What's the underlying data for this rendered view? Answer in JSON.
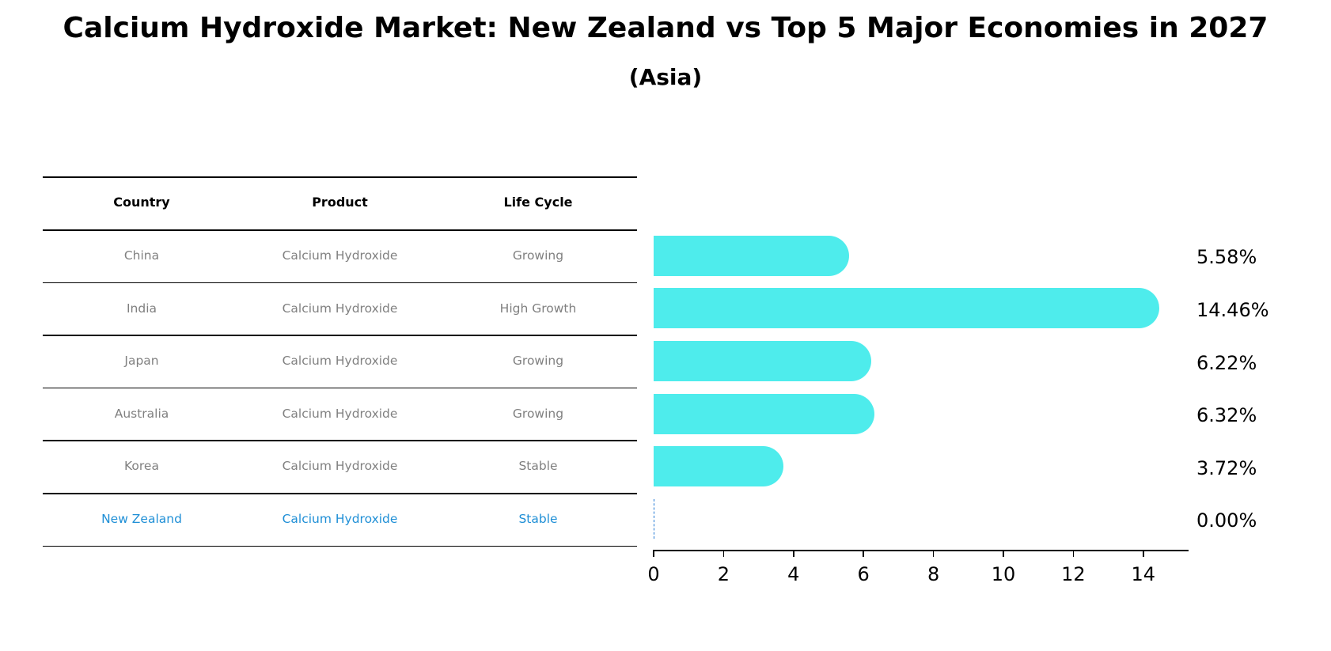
{
  "header": {
    "title": "Calcium Hydroxide Market: New Zealand vs Top 5 Major Economies in 2027",
    "subtitle": "(Asia)"
  },
  "table": {
    "columns": [
      "Country",
      "Product",
      "Life Cycle"
    ],
    "rows": [
      {
        "country": "China",
        "product": "Calcium Hydroxide",
        "life_cycle": "Growing",
        "highlight": false
      },
      {
        "country": "India",
        "product": "Calcium Hydroxide",
        "life_cycle": "High Growth",
        "highlight": false
      },
      {
        "country": "Japan",
        "product": "Calcium Hydroxide",
        "life_cycle": "Growing",
        "highlight": false
      },
      {
        "country": "Australia",
        "product": "Calcium Hydroxide",
        "life_cycle": "Growing",
        "highlight": false
      },
      {
        "country": "Korea",
        "product": "Calcium Hydroxide",
        "life_cycle": "Stable",
        "highlight": false
      },
      {
        "country": "New Zealand",
        "product": "Calcium Hydroxide",
        "life_cycle": "Stable",
        "highlight": true
      }
    ]
  },
  "colors": {
    "bar": "#4eecec",
    "highlight_text": "#1f8fd6",
    "highlight_line": "#1f77d4",
    "row_text": "#808080"
  },
  "chart_data": {
    "type": "bar",
    "orientation": "horizontal",
    "title": "Calcium Hydroxide Market: New Zealand vs Top 5 Major Economies in 2027",
    "subtitle": "(Asia)",
    "categories": [
      "China",
      "India",
      "Japan",
      "Australia",
      "Korea",
      "New Zealand"
    ],
    "values": [
      5.58,
      14.46,
      6.22,
      6.32,
      3.72,
      0.0
    ],
    "value_labels": [
      "5.58%",
      "14.46%",
      "6.22%",
      "6.32%",
      "3.72%",
      "0.00%"
    ],
    "xlabel": "",
    "ylabel": "",
    "xlim": [
      0,
      15.2
    ],
    "xticks": [
      0,
      2,
      4,
      6,
      8,
      10,
      12,
      14
    ],
    "xtick_labels": [
      "0",
      "2",
      "4",
      "6",
      "8",
      "10",
      "12",
      "14"
    ],
    "grid": false,
    "legend": null
  }
}
